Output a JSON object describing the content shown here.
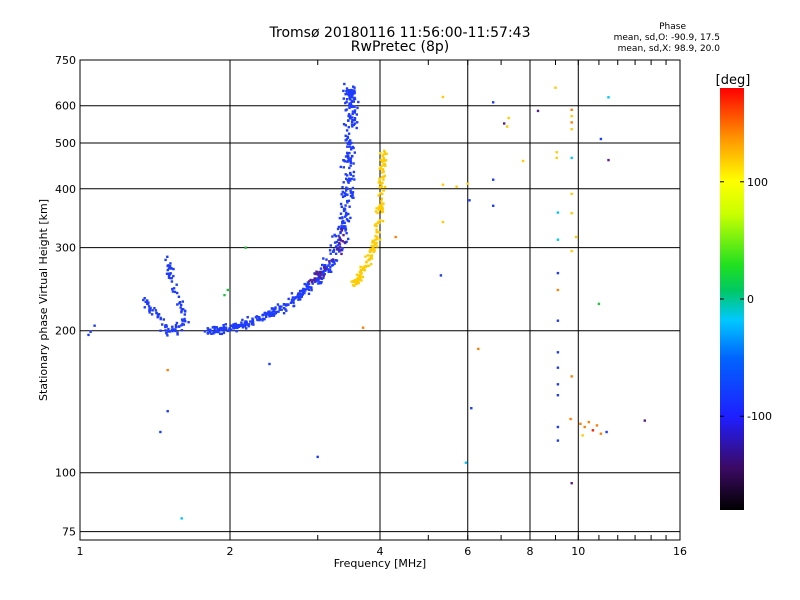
{
  "chart_data": {
    "type": "scatter",
    "title": "Tromsø 20180116 11:56:00-11:57:43",
    "subtitle": "RwPretec (8p)",
    "xlabel": "Frequency [MHz]",
    "ylabel": "Stationary phase Virtual Height [km]",
    "x_scale": "log",
    "y_scale": "log",
    "xlim": [
      1,
      16
    ],
    "ylim": [
      72,
      750
    ],
    "x_ticks": [
      1,
      2,
      4,
      6,
      8,
      10,
      16
    ],
    "x_tick_labels": [
      "1",
      "2",
      "4",
      "6",
      "8",
      "10",
      "16"
    ],
    "y_ticks": [
      75,
      100,
      200,
      300,
      400,
      500,
      600,
      750
    ],
    "y_tick_labels": [
      "75",
      "100",
      "200",
      "300",
      "400",
      "500",
      "600",
      "750"
    ],
    "grid": true,
    "phase_info": {
      "title": "Phase",
      "o_line": "mean, sd,O: -90.9, 17.5",
      "x_line": "mean, sd,X:  98.9, 20.0"
    },
    "colorbar": {
      "label": "[deg]",
      "range": [
        -180,
        180
      ],
      "ticks": [
        100,
        0,
        -100
      ],
      "tick_labels": [
        "100",
        "0",
        "-100"
      ]
    },
    "point_colors": {
      "o_mode": "#1e3cff",
      "x_mode": "#ffcc00",
      "purple": "#5a1e8c",
      "cyan": "#00c8ff",
      "orange": "#ff8000",
      "red": "#ff2000",
      "green": "#20c040"
    },
    "traces": [
      {
        "name": "O-mode F-layer trace",
        "color": "o_mode",
        "points": [
          [
            1.83,
            200
          ],
          [
            1.9,
            201
          ],
          [
            2.0,
            203
          ],
          [
            2.1,
            206
          ],
          [
            2.2,
            209
          ],
          [
            2.35,
            215
          ],
          [
            2.5,
            222
          ],
          [
            2.65,
            230
          ],
          [
            2.8,
            240
          ],
          [
            2.95,
            252
          ],
          [
            3.05,
            262
          ],
          [
            3.15,
            275
          ],
          [
            3.25,
            292
          ],
          [
            3.32,
            310
          ],
          [
            3.38,
            340
          ],
          [
            3.42,
            380
          ],
          [
            3.45,
            430
          ],
          [
            3.48,
            490
          ],
          [
            3.5,
            550
          ],
          [
            3.52,
            600
          ],
          [
            3.5,
            640
          ],
          [
            3.47,
            650
          ]
        ],
        "spread_x": 0.045,
        "spread_y": 0.03,
        "count": 560
      },
      {
        "name": "X-mode F-layer trace",
        "color": "x_mode",
        "points": [
          [
            3.55,
            250
          ],
          [
            3.65,
            262
          ],
          [
            3.75,
            275
          ],
          [
            3.85,
            292
          ],
          [
            3.93,
            312
          ],
          [
            3.98,
            340
          ],
          [
            4.02,
            380
          ],
          [
            4.05,
            430
          ],
          [
            4.08,
            480
          ]
        ],
        "spread_x": 0.025,
        "spread_y": 0.025,
        "count": 170
      },
      {
        "name": "Low-frequency O-mode cluster",
        "color": "o_mode",
        "points": [
          [
            1.35,
            232
          ],
          [
            1.4,
            222
          ],
          [
            1.45,
            210
          ],
          [
            1.5,
            198
          ],
          [
            1.55,
            200
          ],
          [
            1.62,
            210
          ],
          [
            1.58,
            235
          ],
          [
            1.52,
            260
          ],
          [
            1.5,
            285
          ]
        ],
        "spread_x": 0.025,
        "spread_y": 0.035,
        "count": 110
      },
      {
        "name": "Purple fringe",
        "color": "purple",
        "points": [
          [
            2.9,
            255
          ],
          [
            3.1,
            270
          ],
          [
            3.3,
            300
          ],
          [
            3.4,
            330
          ]
        ],
        "spread_x": 0.03,
        "spread_y": 0.03,
        "count": 30
      }
    ],
    "scatter_points": [
      {
        "x": 1.05,
        "y": 199,
        "c": "o_mode"
      },
      {
        "x": 1.07,
        "y": 205,
        "c": "o_mode"
      },
      {
        "x": 1.04,
        "y": 196,
        "c": "o_mode"
      },
      {
        "x": 1.5,
        "y": 135,
        "c": "o_mode"
      },
      {
        "x": 1.5,
        "y": 165,
        "c": "orange"
      },
      {
        "x": 1.45,
        "y": 122,
        "c": "o_mode"
      },
      {
        "x": 1.6,
        "y": 80,
        "c": "cyan"
      },
      {
        "x": 1.95,
        "y": 238,
        "c": "green"
      },
      {
        "x": 1.98,
        "y": 244,
        "c": "green"
      },
      {
        "x": 2.4,
        "y": 170,
        "c": "o_mode"
      },
      {
        "x": 2.15,
        "y": 300,
        "c": "green"
      },
      {
        "x": 3.0,
        "y": 108,
        "c": "o_mode"
      },
      {
        "x": 3.7,
        "y": 203,
        "c": "orange"
      },
      {
        "x": 4.3,
        "y": 316,
        "c": "orange"
      },
      {
        "x": 5.35,
        "y": 626,
        "c": "x_mode"
      },
      {
        "x": 5.35,
        "y": 408,
        "c": "x_mode"
      },
      {
        "x": 5.35,
        "y": 340,
        "c": "x_mode"
      },
      {
        "x": 5.3,
        "y": 262,
        "c": "o_mode"
      },
      {
        "x": 5.7,
        "y": 404,
        "c": "x_mode"
      },
      {
        "x": 6.0,
        "y": 410,
        "c": "x_mode"
      },
      {
        "x": 6.05,
        "y": 378,
        "c": "o_mode"
      },
      {
        "x": 5.95,
        "y": 105,
        "c": "cyan"
      },
      {
        "x": 6.1,
        "y": 137,
        "c": "o_mode"
      },
      {
        "x": 6.3,
        "y": 183,
        "c": "orange"
      },
      {
        "x": 6.75,
        "y": 610,
        "c": "o_mode"
      },
      {
        "x": 6.75,
        "y": 418,
        "c": "o_mode"
      },
      {
        "x": 6.75,
        "y": 368,
        "c": "o_mode"
      },
      {
        "x": 7.1,
        "y": 550,
        "c": "purple"
      },
      {
        "x": 7.25,
        "y": 565,
        "c": "x_mode"
      },
      {
        "x": 7.2,
        "y": 542,
        "c": "x_mode"
      },
      {
        "x": 7.75,
        "y": 458,
        "c": "x_mode"
      },
      {
        "x": 8.3,
        "y": 585,
        "c": "purple"
      },
      {
        "x": 9.0,
        "y": 655,
        "c": "x_mode"
      },
      {
        "x": 9.05,
        "y": 478,
        "c": "x_mode"
      },
      {
        "x": 9.05,
        "y": 465,
        "c": "x_mode"
      },
      {
        "x": 9.1,
        "y": 356,
        "c": "cyan"
      },
      {
        "x": 9.1,
        "y": 312,
        "c": "cyan"
      },
      {
        "x": 9.1,
        "y": 265,
        "c": "o_mode"
      },
      {
        "x": 9.1,
        "y": 244,
        "c": "orange"
      },
      {
        "x": 9.1,
        "y": 210,
        "c": "o_mode"
      },
      {
        "x": 9.1,
        "y": 180,
        "c": "o_mode"
      },
      {
        "x": 9.1,
        "y": 167,
        "c": "o_mode"
      },
      {
        "x": 9.1,
        "y": 154,
        "c": "o_mode"
      },
      {
        "x": 9.1,
        "y": 146,
        "c": "o_mode"
      },
      {
        "x": 9.1,
        "y": 125,
        "c": "o_mode"
      },
      {
        "x": 9.1,
        "y": 117,
        "c": "o_mode"
      },
      {
        "x": 9.7,
        "y": 588,
        "c": "orange"
      },
      {
        "x": 9.7,
        "y": 570,
        "c": "x_mode"
      },
      {
        "x": 9.7,
        "y": 553,
        "c": "orange"
      },
      {
        "x": 9.7,
        "y": 535,
        "c": "x_mode"
      },
      {
        "x": 9.7,
        "y": 465,
        "c": "cyan"
      },
      {
        "x": 9.7,
        "y": 390,
        "c": "x_mode"
      },
      {
        "x": 9.7,
        "y": 355,
        "c": "x_mode"
      },
      {
        "x": 9.9,
        "y": 316,
        "c": "x_mode"
      },
      {
        "x": 9.7,
        "y": 295,
        "c": "x_mode"
      },
      {
        "x": 9.7,
        "y": 160,
        "c": "orange"
      },
      {
        "x": 9.65,
        "y": 130,
        "c": "orange"
      },
      {
        "x": 9.7,
        "y": 95,
        "c": "purple"
      },
      {
        "x": 10.1,
        "y": 127,
        "c": "orange"
      },
      {
        "x": 10.3,
        "y": 125,
        "c": "orange"
      },
      {
        "x": 10.5,
        "y": 128,
        "c": "orange"
      },
      {
        "x": 10.7,
        "y": 123,
        "c": "red"
      },
      {
        "x": 10.9,
        "y": 126,
        "c": "orange"
      },
      {
        "x": 11.1,
        "y": 121,
        "c": "orange"
      },
      {
        "x": 11.4,
        "y": 122,
        "c": "o_mode"
      },
      {
        "x": 10.2,
        "y": 120,
        "c": "x_mode"
      },
      {
        "x": 11.0,
        "y": 228,
        "c": "green"
      },
      {
        "x": 11.1,
        "y": 510,
        "c": "o_mode"
      },
      {
        "x": 11.5,
        "y": 460,
        "c": "purple"
      },
      {
        "x": 11.5,
        "y": 625,
        "c": "cyan"
      },
      {
        "x": 13.6,
        "y": 129,
        "c": "purple"
      }
    ]
  }
}
